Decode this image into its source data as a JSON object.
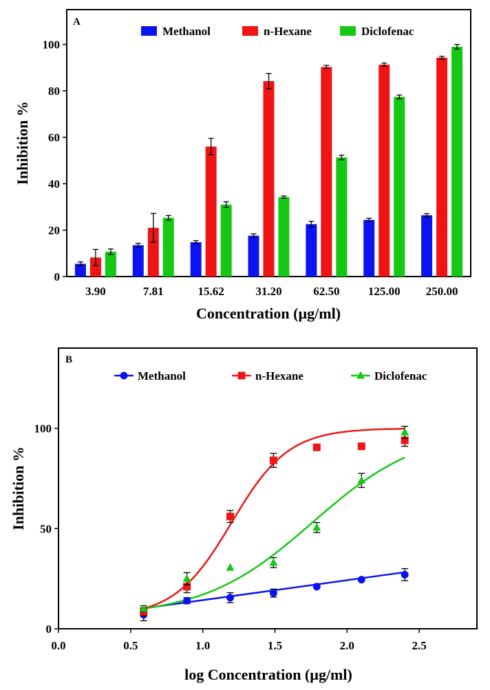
{
  "chart_data": [
    {
      "type": "bar",
      "panel_label": "A",
      "title": "",
      "xlabel": "Concentration (µg/ml)",
      "ylabel": "Inhibition %",
      "ylim": [
        0,
        115
      ],
      "yticks": [
        "0",
        "20",
        "40",
        "60",
        "80",
        "100"
      ],
      "categories": [
        "3.90",
        "7.81",
        "15.62",
        "31.20",
        "62.50",
        "125.00",
        "250.00"
      ],
      "legend_position": "top",
      "series": [
        {
          "name": "Methanol",
          "color": "#0a14f0",
          "values": [
            5.5,
            13.5,
            14.8,
            17.6,
            22.6,
            24.4,
            26.4
          ],
          "errors": [
            0.8,
            0.8,
            0.7,
            0.8,
            1.2,
            0.7,
            0.7
          ]
        },
        {
          "name": "n-Hexane",
          "color": "#f01414",
          "values": [
            8.2,
            21.0,
            56.0,
            84.2,
            90.3,
            91.3,
            94.3
          ],
          "errors": [
            3.5,
            6.2,
            3.5,
            3.3,
            0.7,
            0.7,
            0.6
          ]
        },
        {
          "name": "Diclofenac",
          "color": "#14c814",
          "values": [
            10.7,
            25.3,
            31.0,
            34.2,
            51.3,
            77.4,
            99.0
          ],
          "errors": [
            1.2,
            1.0,
            1.2,
            0.5,
            1.0,
            0.8,
            1.0
          ]
        }
      ]
    },
    {
      "type": "scatter",
      "panel_label": "B",
      "title": "",
      "xlabel": "log Concentration (µg/ml)",
      "ylabel": "Inhibition %",
      "xlim": [
        0,
        2.9
      ],
      "ylim": [
        0,
        140
      ],
      "xticks": [
        "0.0",
        "0.5",
        "1.0",
        "1.5",
        "2.0",
        "2.5"
      ],
      "yticks": [
        "0",
        "50",
        "100"
      ],
      "x": [
        0.59,
        0.89,
        1.19,
        1.49,
        1.79,
        2.1,
        2.4
      ],
      "legend_position": "top",
      "series": [
        {
          "name": "Methanol",
          "color": "#0a14f0",
          "marker": "circle",
          "values": [
            7.0,
            14.0,
            15.5,
            17.8,
            21.0,
            24.5,
            27.0
          ],
          "errors": [
            3.0,
            1.5,
            2.5,
            2.0,
            0,
            0,
            3.0
          ],
          "fit": {
            "kind": "line",
            "x": [
              0.59,
              2.4
            ],
            "y": [
              10.2,
              28.2
            ]
          }
        },
        {
          "name": "n-Hexane",
          "color": "#f01414",
          "marker": "square",
          "values": [
            8.5,
            21.0,
            56.0,
            84.0,
            90.5,
            91.0,
            94.0
          ],
          "errors": [
            2.0,
            3.0,
            3.0,
            3.5,
            0,
            0,
            3.0
          ],
          "fit": {
            "kind": "sigmoid",
            "bottom": 6,
            "top": 100,
            "logec50": 1.2,
            "hill": 2.2
          }
        },
        {
          "name": "Diclofenac",
          "color": "#14c814",
          "marker": "triangle",
          "values": [
            10.0,
            25.0,
            30.5,
            33.0,
            50.5,
            74.0,
            98.0
          ],
          "errors": [
            1.5,
            3.0,
            0,
            2.5,
            2.5,
            3.5,
            3.0
          ],
          "fit": {
            "kind": "sigmoid",
            "bottom": 6,
            "top": 100,
            "logec50": 1.76,
            "hill": 1.15
          }
        }
      ]
    }
  ]
}
